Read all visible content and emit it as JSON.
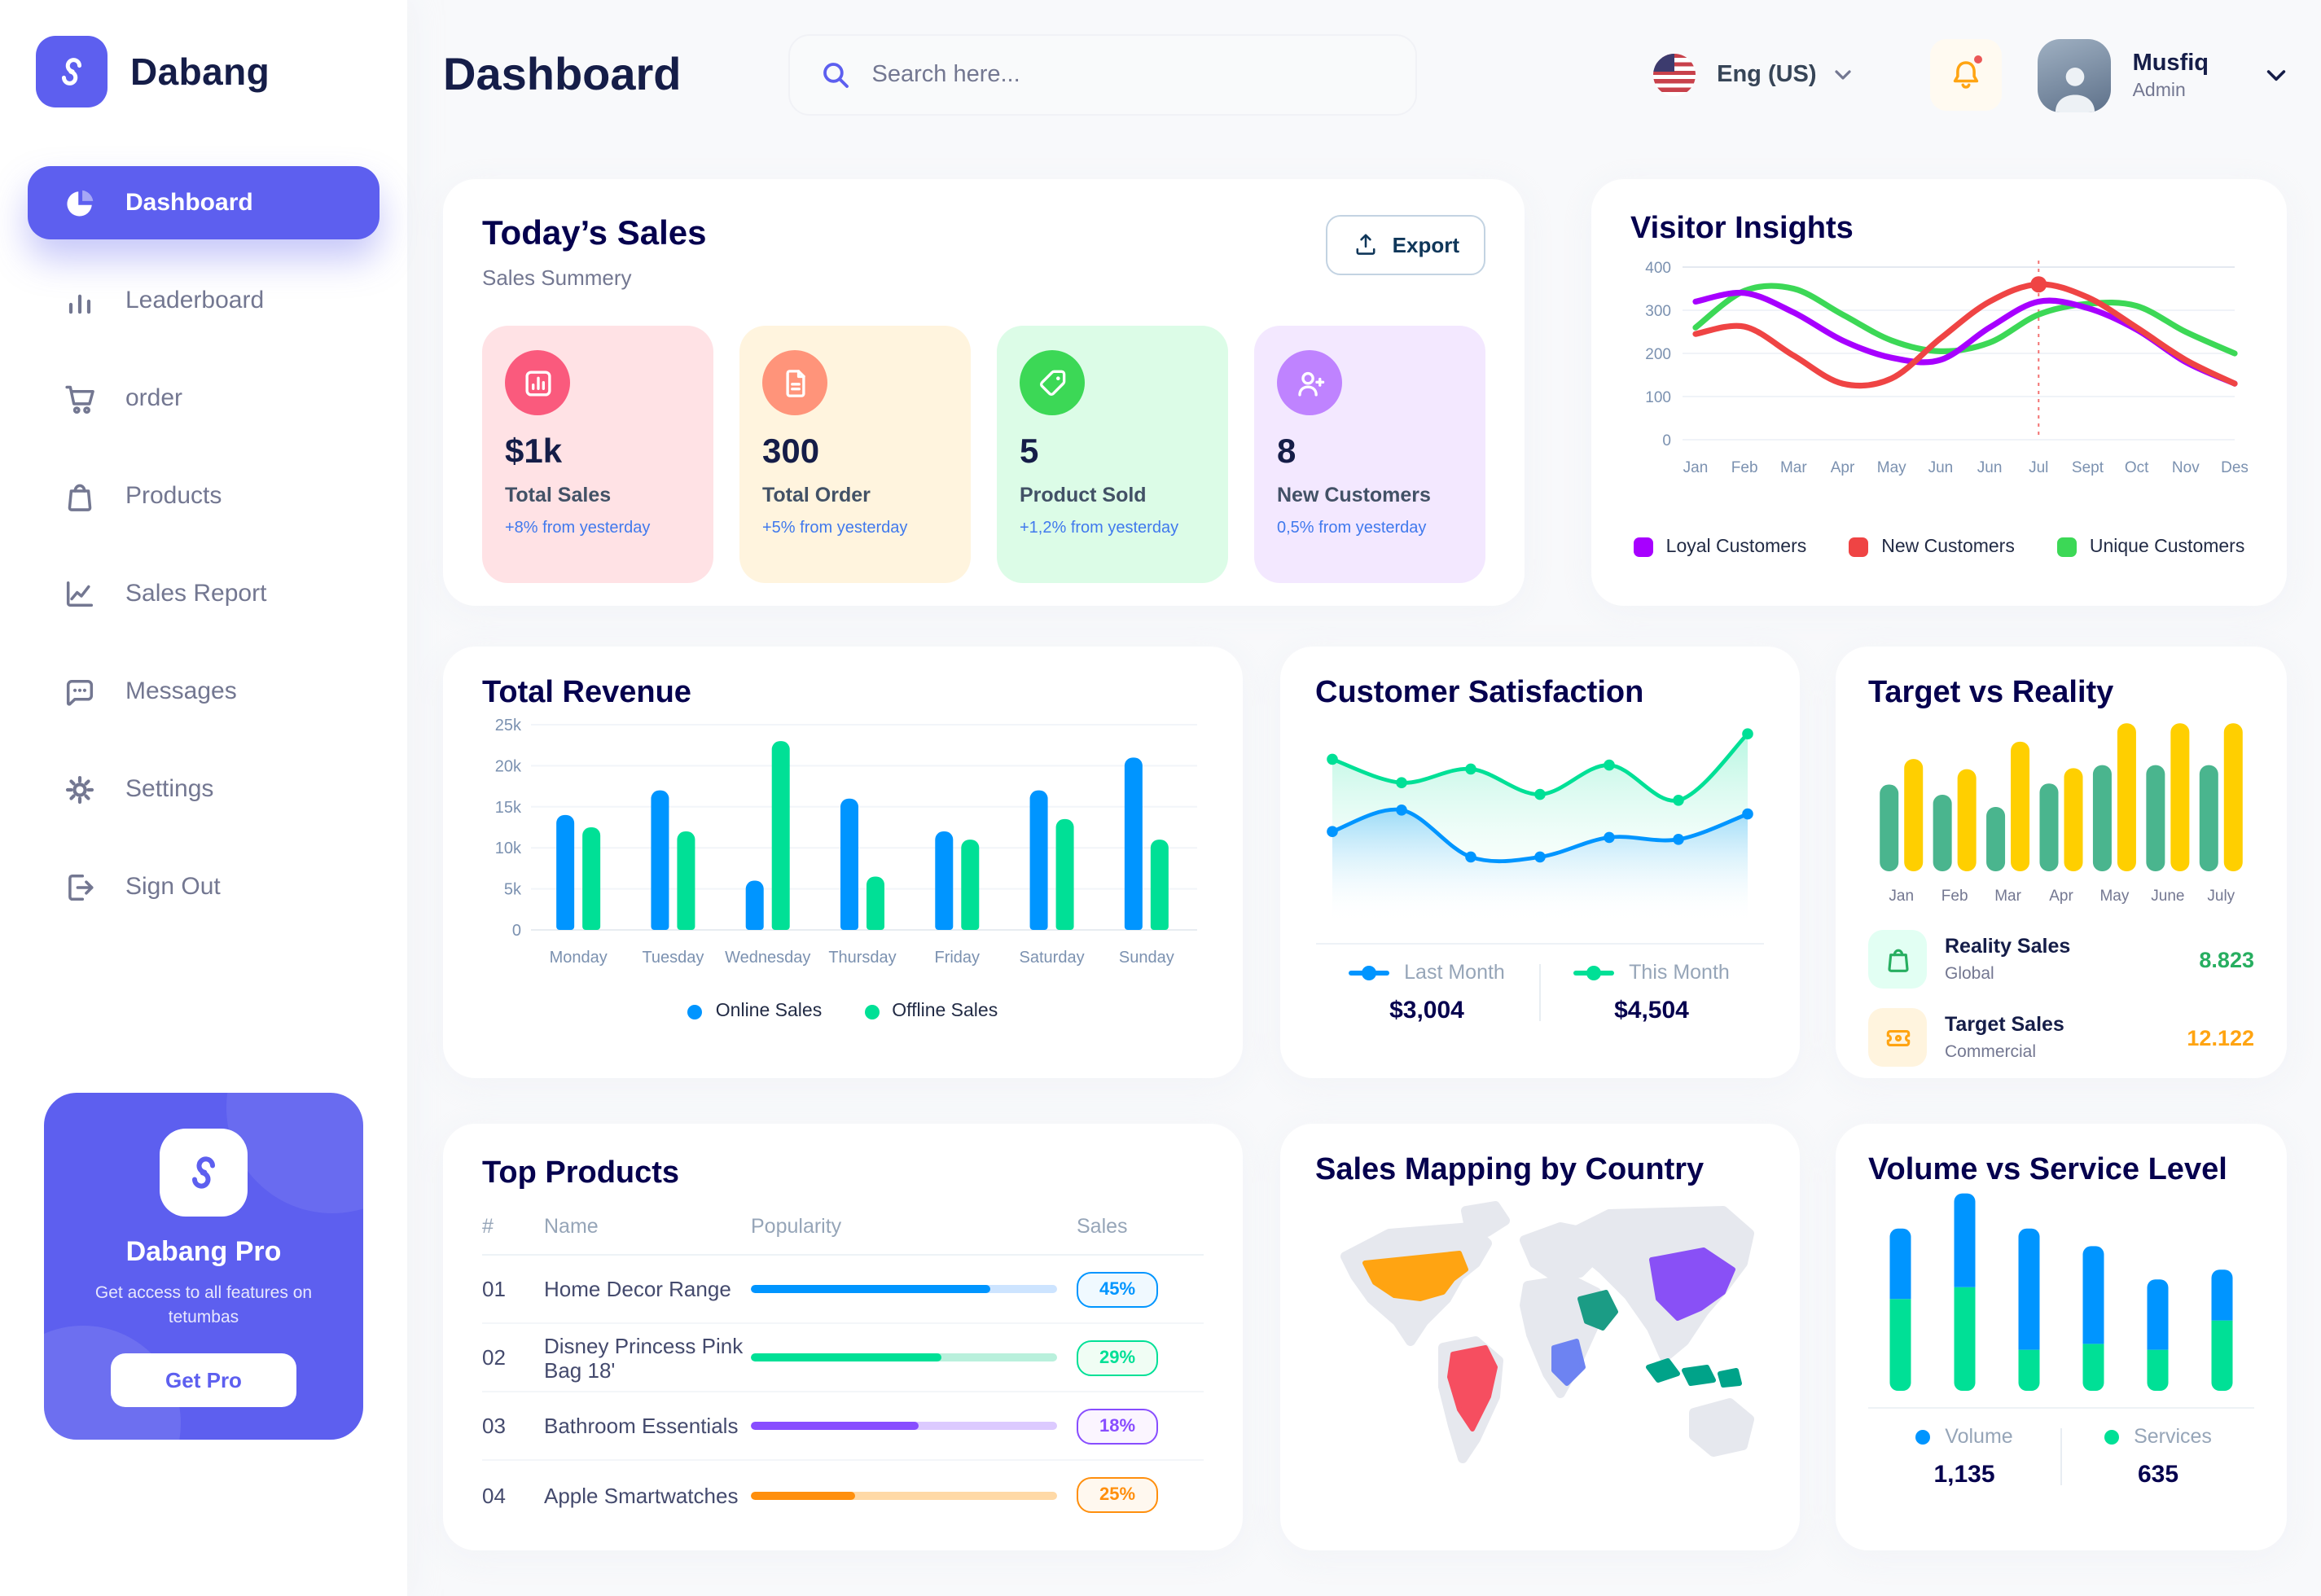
{
  "app": {
    "brand": "Dabang",
    "accent": "#5D5FEF"
  },
  "header": {
    "title": "Dashboard",
    "search_placeholder": "Search here...",
    "language": "Eng (US)",
    "user_name": "Musfiq",
    "user_role": "Admin"
  },
  "sidebar": {
    "items": [
      {
        "label": "Dashboard",
        "icon": "pie-chart-icon",
        "active": true
      },
      {
        "label": "Leaderboard",
        "icon": "bar-chart-icon",
        "active": false
      },
      {
        "label": "order",
        "icon": "cart-icon",
        "active": false
      },
      {
        "label": "Products",
        "icon": "bag-icon",
        "active": false
      },
      {
        "label": "Sales Report",
        "icon": "line-chart-icon",
        "active": false
      },
      {
        "label": "Messages",
        "icon": "message-icon",
        "active": false
      },
      {
        "label": "Settings",
        "icon": "gear-icon",
        "active": false
      },
      {
        "label": "Sign Out",
        "icon": "sign-out-icon",
        "active": false
      }
    ],
    "pro": {
      "title": "Dabang Pro",
      "subtitle": "Get access to all features on tetumbas",
      "button": "Get Pro"
    }
  },
  "today_sales": {
    "title": "Today’s Sales",
    "subtitle": "Sales Summery",
    "export_label": "Export",
    "cards": [
      {
        "value": "$1k",
        "label": "Total Sales",
        "delta": "+8% from yesterday",
        "bg": "#FFE2E5",
        "icon_bg": "#FA5A7D",
        "icon": "chart-bar-icon"
      },
      {
        "value": "300",
        "label": "Total Order",
        "delta": "+5% from yesterday",
        "bg": "#FFF4DE",
        "icon_bg": "#FF947A",
        "icon": "file-icon"
      },
      {
        "value": "5",
        "label": "Product Sold",
        "delta": "+1,2% from yesterday",
        "bg": "#DCFCE7",
        "icon_bg": "#3CD856",
        "icon": "tag-icon"
      },
      {
        "value": "8",
        "label": "New Customers",
        "delta": "0,5% from yesterday",
        "bg": "#F3E8FF",
        "icon_bg": "#BF83FF",
        "icon": "user-plus-icon"
      }
    ]
  },
  "chart_data": {
    "visitor_insights": {
      "type": "line",
      "title": "Visitor Insights",
      "x_labels": [
        "Jan",
        "Feb",
        "Mar",
        "Apr",
        "May",
        "Jun",
        "Jun",
        "Jul",
        "Sept",
        "Oct",
        "Nov",
        "Des"
      ],
      "y_ticks": [
        0,
        100,
        200,
        300,
        400
      ],
      "ylim": [
        0,
        400
      ],
      "highlight_index": 7,
      "highlight_color": "#EF4444",
      "series": [
        {
          "name": "Loyal Customers",
          "color": "#A700FF",
          "values": [
            320,
            340,
            295,
            230,
            190,
            185,
            260,
            320,
            305,
            255,
            180,
            130
          ]
        },
        {
          "name": "New Customers",
          "color": "#EF4444",
          "values": [
            245,
            262,
            195,
            130,
            142,
            235,
            320,
            360,
            330,
            260,
            185,
            130
          ]
        },
        {
          "name": "Unique Customers",
          "color": "#3CD856",
          "values": [
            260,
            345,
            350,
            290,
            230,
            205,
            225,
            290,
            315,
            310,
            250,
            200
          ]
        }
      ]
    },
    "total_revenue": {
      "type": "bar",
      "title": "Total Revenue",
      "categories": [
        "Monday",
        "Tuesday",
        "Wednesday",
        "Thursday",
        "Friday",
        "Saturday",
        "Sunday"
      ],
      "y_tick_labels": [
        "0",
        "5k",
        "10k",
        "15k",
        "20k",
        "25k"
      ],
      "ylim": [
        0,
        25000
      ],
      "series": [
        {
          "name": "Online Sales",
          "color": "#0095FF",
          "values": [
            14000,
            17000,
            6000,
            16000,
            12000,
            17000,
            21000
          ]
        },
        {
          "name": "Offline Sales",
          "color": "#00E096",
          "values": [
            12500,
            12000,
            23000,
            6500,
            11000,
            13500,
            11000
          ]
        }
      ]
    },
    "customer_satisfaction": {
      "type": "area",
      "title": "Customer Satisfaction",
      "ylim": [
        0,
        100
      ],
      "series": [
        {
          "name": "Last Month",
          "color": "#0095FF",
          "total": "$3,004",
          "values": [
            47,
            58,
            34,
            34,
            44,
            43,
            56
          ]
        },
        {
          "name": "This Month",
          "color": "#00E096",
          "total": "$4,504",
          "values": [
            84,
            72,
            79,
            66,
            81,
            63,
            97
          ]
        }
      ]
    },
    "target_vs_reality": {
      "type": "bar",
      "title": "Target vs Reality",
      "categories": [
        "Jan",
        "Feb",
        "Mar",
        "Apr",
        "May",
        "June",
        "July"
      ],
      "ylim": [
        0,
        15
      ],
      "series": [
        {
          "name": "Reality Sales",
          "subtitle": "Global",
          "color": "#4AB58E",
          "value_label": "8.823",
          "value_color": "#27AE60",
          "icon_bg": "#E2FFF3",
          "icon": "shopping-bag-icon",
          "values": [
            8.5,
            7.5,
            6.3,
            8.6,
            10.4,
            10.4,
            10.4
          ]
        },
        {
          "name": "Target Sales",
          "subtitle": "Commercial",
          "color": "#FFCF00",
          "value_label": "12.122",
          "value_color": "#FFA412",
          "icon_bg": "#FFF4DE",
          "icon": "ticket-icon",
          "values": [
            11,
            10,
            12.7,
            10.1,
            14.5,
            14.5,
            14.5
          ]
        }
      ]
    },
    "top_products": {
      "type": "table",
      "title": "Top Products",
      "headers": [
        "#",
        "Name",
        "Popularity",
        "Sales"
      ],
      "rows": [
        {
          "num": "01",
          "name": "Home Decor Range",
          "popularity": 78,
          "sales": "45%",
          "color": "#0095FF",
          "track": "#CDE4FF",
          "badge_bg": "#F0F9FF"
        },
        {
          "num": "02",
          "name": "Disney Princess Pink Bag 18'",
          "popularity": 62,
          "sales": "29%",
          "color": "#00E096",
          "track": "#B9F0DC",
          "badge_bg": "#F0FDF4"
        },
        {
          "num": "03",
          "name": "Bathroom Essentials",
          "popularity": 55,
          "sales": "18%",
          "color": "#884DFF",
          "track": "#DCCAFF",
          "badge_bg": "#FBF5FF"
        },
        {
          "num": "04",
          "name": "Apple Smartwatches",
          "popularity": 34,
          "sales": "25%",
          "color": "#FF8F0D",
          "track": "#FFD9A6",
          "badge_bg": "#FFF8EF"
        }
      ]
    },
    "sales_map": {
      "type": "map",
      "title": "Sales Mapping by Country",
      "countries": [
        {
          "name": "United States",
          "color": "#FFA412"
        },
        {
          "name": "Brazil",
          "color": "#F64E60"
        },
        {
          "name": "Saudi Arabia",
          "color": "#1B9C85"
        },
        {
          "name": "DR Congo",
          "color": "#6D83F2"
        },
        {
          "name": "China",
          "color": "#8950F6"
        },
        {
          "name": "Indonesia",
          "color": "#00A389"
        }
      ]
    },
    "volume_service": {
      "type": "stacked-bar",
      "title": "Volume vs Service Level",
      "series": [
        {
          "name": "Volume",
          "color": "#0095FF",
          "total": "1,135",
          "values": [
            36,
            48,
            62,
            50,
            36,
            26
          ]
        },
        {
          "name": "Services",
          "color": "#00E096",
          "total": "635",
          "values": [
            47,
            53,
            21,
            24,
            21,
            36
          ]
        }
      ]
    }
  }
}
